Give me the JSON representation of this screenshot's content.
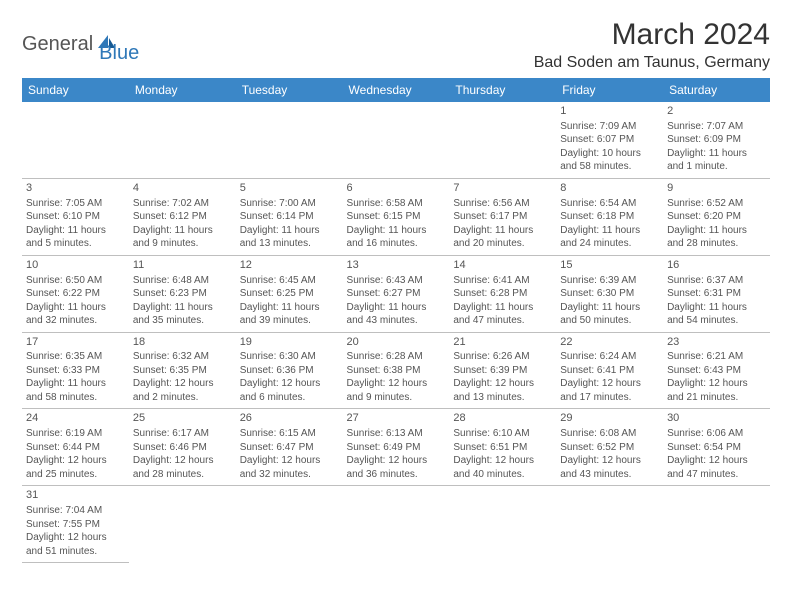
{
  "logo": {
    "general": "General",
    "blue": "Blue"
  },
  "title": "March 2024",
  "location": "Bad Soden am Taunus, Germany",
  "colors": {
    "header_bg": "#3b87c8",
    "header_text": "#ffffff",
    "row_border": "#3b87c8",
    "cell_border": "#bfbfbf",
    "text": "#555555"
  },
  "weekdays": [
    "Sunday",
    "Monday",
    "Tuesday",
    "Wednesday",
    "Thursday",
    "Friday",
    "Saturday"
  ],
  "weeks": [
    [
      null,
      null,
      null,
      null,
      null,
      {
        "n": "1",
        "sr": "Sunrise: 7:09 AM",
        "ss": "Sunset: 6:07 PM",
        "d1": "Daylight: 10 hours",
        "d2": "and 58 minutes."
      },
      {
        "n": "2",
        "sr": "Sunrise: 7:07 AM",
        "ss": "Sunset: 6:09 PM",
        "d1": "Daylight: 11 hours",
        "d2": "and 1 minute."
      }
    ],
    [
      {
        "n": "3",
        "sr": "Sunrise: 7:05 AM",
        "ss": "Sunset: 6:10 PM",
        "d1": "Daylight: 11 hours",
        "d2": "and 5 minutes."
      },
      {
        "n": "4",
        "sr": "Sunrise: 7:02 AM",
        "ss": "Sunset: 6:12 PM",
        "d1": "Daylight: 11 hours",
        "d2": "and 9 minutes."
      },
      {
        "n": "5",
        "sr": "Sunrise: 7:00 AM",
        "ss": "Sunset: 6:14 PM",
        "d1": "Daylight: 11 hours",
        "d2": "and 13 minutes."
      },
      {
        "n": "6",
        "sr": "Sunrise: 6:58 AM",
        "ss": "Sunset: 6:15 PM",
        "d1": "Daylight: 11 hours",
        "d2": "and 16 minutes."
      },
      {
        "n": "7",
        "sr": "Sunrise: 6:56 AM",
        "ss": "Sunset: 6:17 PM",
        "d1": "Daylight: 11 hours",
        "d2": "and 20 minutes."
      },
      {
        "n": "8",
        "sr": "Sunrise: 6:54 AM",
        "ss": "Sunset: 6:18 PM",
        "d1": "Daylight: 11 hours",
        "d2": "and 24 minutes."
      },
      {
        "n": "9",
        "sr": "Sunrise: 6:52 AM",
        "ss": "Sunset: 6:20 PM",
        "d1": "Daylight: 11 hours",
        "d2": "and 28 minutes."
      }
    ],
    [
      {
        "n": "10",
        "sr": "Sunrise: 6:50 AM",
        "ss": "Sunset: 6:22 PM",
        "d1": "Daylight: 11 hours",
        "d2": "and 32 minutes."
      },
      {
        "n": "11",
        "sr": "Sunrise: 6:48 AM",
        "ss": "Sunset: 6:23 PM",
        "d1": "Daylight: 11 hours",
        "d2": "and 35 minutes."
      },
      {
        "n": "12",
        "sr": "Sunrise: 6:45 AM",
        "ss": "Sunset: 6:25 PM",
        "d1": "Daylight: 11 hours",
        "d2": "and 39 minutes."
      },
      {
        "n": "13",
        "sr": "Sunrise: 6:43 AM",
        "ss": "Sunset: 6:27 PM",
        "d1": "Daylight: 11 hours",
        "d2": "and 43 minutes."
      },
      {
        "n": "14",
        "sr": "Sunrise: 6:41 AM",
        "ss": "Sunset: 6:28 PM",
        "d1": "Daylight: 11 hours",
        "d2": "and 47 minutes."
      },
      {
        "n": "15",
        "sr": "Sunrise: 6:39 AM",
        "ss": "Sunset: 6:30 PM",
        "d1": "Daylight: 11 hours",
        "d2": "and 50 minutes."
      },
      {
        "n": "16",
        "sr": "Sunrise: 6:37 AM",
        "ss": "Sunset: 6:31 PM",
        "d1": "Daylight: 11 hours",
        "d2": "and 54 minutes."
      }
    ],
    [
      {
        "n": "17",
        "sr": "Sunrise: 6:35 AM",
        "ss": "Sunset: 6:33 PM",
        "d1": "Daylight: 11 hours",
        "d2": "and 58 minutes."
      },
      {
        "n": "18",
        "sr": "Sunrise: 6:32 AM",
        "ss": "Sunset: 6:35 PM",
        "d1": "Daylight: 12 hours",
        "d2": "and 2 minutes."
      },
      {
        "n": "19",
        "sr": "Sunrise: 6:30 AM",
        "ss": "Sunset: 6:36 PM",
        "d1": "Daylight: 12 hours",
        "d2": "and 6 minutes."
      },
      {
        "n": "20",
        "sr": "Sunrise: 6:28 AM",
        "ss": "Sunset: 6:38 PM",
        "d1": "Daylight: 12 hours",
        "d2": "and 9 minutes."
      },
      {
        "n": "21",
        "sr": "Sunrise: 6:26 AM",
        "ss": "Sunset: 6:39 PM",
        "d1": "Daylight: 12 hours",
        "d2": "and 13 minutes."
      },
      {
        "n": "22",
        "sr": "Sunrise: 6:24 AM",
        "ss": "Sunset: 6:41 PM",
        "d1": "Daylight: 12 hours",
        "d2": "and 17 minutes."
      },
      {
        "n": "23",
        "sr": "Sunrise: 6:21 AM",
        "ss": "Sunset: 6:43 PM",
        "d1": "Daylight: 12 hours",
        "d2": "and 21 minutes."
      }
    ],
    [
      {
        "n": "24",
        "sr": "Sunrise: 6:19 AM",
        "ss": "Sunset: 6:44 PM",
        "d1": "Daylight: 12 hours",
        "d2": "and 25 minutes."
      },
      {
        "n": "25",
        "sr": "Sunrise: 6:17 AM",
        "ss": "Sunset: 6:46 PM",
        "d1": "Daylight: 12 hours",
        "d2": "and 28 minutes."
      },
      {
        "n": "26",
        "sr": "Sunrise: 6:15 AM",
        "ss": "Sunset: 6:47 PM",
        "d1": "Daylight: 12 hours",
        "d2": "and 32 minutes."
      },
      {
        "n": "27",
        "sr": "Sunrise: 6:13 AM",
        "ss": "Sunset: 6:49 PM",
        "d1": "Daylight: 12 hours",
        "d2": "and 36 minutes."
      },
      {
        "n": "28",
        "sr": "Sunrise: 6:10 AM",
        "ss": "Sunset: 6:51 PM",
        "d1": "Daylight: 12 hours",
        "d2": "and 40 minutes."
      },
      {
        "n": "29",
        "sr": "Sunrise: 6:08 AM",
        "ss": "Sunset: 6:52 PM",
        "d1": "Daylight: 12 hours",
        "d2": "and 43 minutes."
      },
      {
        "n": "30",
        "sr": "Sunrise: 6:06 AM",
        "ss": "Sunset: 6:54 PM",
        "d1": "Daylight: 12 hours",
        "d2": "and 47 minutes."
      }
    ],
    [
      {
        "n": "31",
        "sr": "Sunrise: 7:04 AM",
        "ss": "Sunset: 7:55 PM",
        "d1": "Daylight: 12 hours",
        "d2": "and 51 minutes."
      },
      null,
      null,
      null,
      null,
      null,
      null
    ]
  ]
}
